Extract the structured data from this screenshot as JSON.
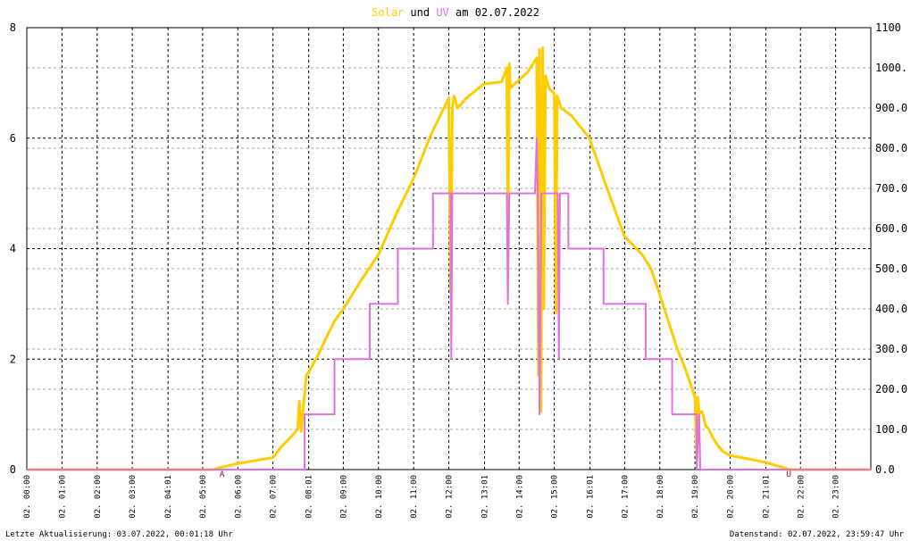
{
  "chart_data": {
    "type": "line",
    "title_parts": {
      "joiner": "und",
      "suffix": "am 02.07.2022"
    },
    "series": [
      {
        "name": "Solar",
        "color": "#ffcc00",
        "axis": "y2",
        "x": [
          0,
          5.3,
          5.5,
          6,
          7,
          7.25,
          7.5,
          7.7,
          7.75,
          7.8,
          7.95,
          8,
          8.25,
          8.5,
          8.75,
          9,
          9.5,
          10,
          10.5,
          11,
          11.5,
          12,
          12.05,
          12.1,
          12.15,
          12.25,
          12.5,
          13,
          13.5,
          13.65,
          13.68,
          13.72,
          13.75,
          14,
          14.25,
          14.5,
          14.55,
          14.58,
          14.62,
          14.67,
          14.7,
          14.75,
          14.85,
          15,
          15.05,
          15.08,
          15.12,
          15.2,
          15.5,
          16,
          16.5,
          17,
          17.5,
          17.75,
          18,
          18.5,
          18.75,
          19,
          19.05,
          19.08,
          19.12,
          19.2,
          19.3,
          19.4,
          19.5,
          19.65,
          19.8,
          20,
          20.5,
          21,
          21.5,
          21.7,
          24
        ],
        "values": [
          0,
          0,
          5,
          15,
          30,
          58,
          80,
          100,
          170,
          95,
          235,
          240,
          280,
          325,
          370,
          400,
          470,
          535,
          635,
          725,
          835,
          925,
          440,
          900,
          930,
          900,
          925,
          960,
          965,
          1000,
          570,
          1010,
          950,
          970,
          990,
          1025,
          235,
          1045,
          145,
          1050,
          400,
          980,
          950,
          935,
          390,
          930,
          920,
          900,
          880,
          825,
          700,
          580,
          535,
          500,
          435,
          300,
          245,
          180,
          25,
          180,
          140,
          145,
          110,
          100,
          80,
          60,
          45,
          35,
          27,
          18,
          5,
          0,
          0
        ]
      },
      {
        "name": "UV",
        "color": "#e070e0",
        "axis": "y",
        "x": [
          0,
          7.9,
          7.9,
          8.75,
          8.75,
          9.75,
          9.75,
          10.55,
          10.55,
          11.55,
          11.55,
          12.05,
          12.07,
          12.1,
          13.65,
          13.68,
          13.72,
          14.45,
          14.5,
          14.53,
          14.58,
          14.63,
          15.1,
          15.13,
          15.16,
          15.4,
          15.4,
          16.4,
          16.4,
          17.6,
          17.6,
          18.35,
          18.35,
          19.05,
          19.05,
          19.12,
          19.15,
          24
        ],
        "values": [
          0,
          0,
          1,
          1,
          2,
          2,
          3,
          3,
          4,
          4,
          5,
          5,
          2,
          5,
          5,
          3,
          5,
          5,
          6,
          5,
          1,
          5,
          5,
          2,
          5,
          5,
          4,
          4,
          3,
          3,
          2,
          2,
          1,
          1,
          0,
          1,
          0,
          0
        ]
      }
    ],
    "xlim": [
      0,
      24
    ],
    "xticks": [
      {
        "value": 0,
        "label": "02. 00:00"
      },
      {
        "value": 1,
        "label": "02. 01:00"
      },
      {
        "value": 2,
        "label": "02. 02:00"
      },
      {
        "value": 3,
        "label": "02. 03:00"
      },
      {
        "value": 4.0167,
        "label": "02. 04:01"
      },
      {
        "value": 5,
        "label": "02. 05:00"
      },
      {
        "value": 6,
        "label": "02. 06:00"
      },
      {
        "value": 7,
        "label": "02. 07:00"
      },
      {
        "value": 8.0167,
        "label": "02. 08:01"
      },
      {
        "value": 9,
        "label": "02. 09:00"
      },
      {
        "value": 10,
        "label": "02. 10:00"
      },
      {
        "value": 11,
        "label": "02. 11:00"
      },
      {
        "value": 12,
        "label": "02. 12:00"
      },
      {
        "value": 13.0167,
        "label": "02. 13:01"
      },
      {
        "value": 14,
        "label": "02. 14:00"
      },
      {
        "value": 15,
        "label": "02. 15:00"
      },
      {
        "value": 16.0167,
        "label": "02. 16:01"
      },
      {
        "value": 17,
        "label": "02. 17:00"
      },
      {
        "value": 18,
        "label": "02. 18:00"
      },
      {
        "value": 19,
        "label": "02. 19:00"
      },
      {
        "value": 20,
        "label": "02. 20:00"
      },
      {
        "value": 21.0167,
        "label": "02. 21:01"
      },
      {
        "value": 22,
        "label": "02. 22:00"
      },
      {
        "value": 23,
        "label": "02. 23:00"
      }
    ],
    "ylim": [
      0,
      8
    ],
    "yticks": [
      0,
      2,
      4,
      6,
      8
    ],
    "y2lim": [
      0,
      1100
    ],
    "y2ticks": [
      {
        "value": 0,
        "label": "0.0"
      },
      {
        "value": 100,
        "label": "100.0"
      },
      {
        "value": 200,
        "label": "200.0"
      },
      {
        "value": 300,
        "label": "300.0"
      },
      {
        "value": 400,
        "label": "400.0"
      },
      {
        "value": 500,
        "label": "500.0"
      },
      {
        "value": 600,
        "label": "600.0"
      },
      {
        "value": 700,
        "label": "700.0"
      },
      {
        "value": 800,
        "label": "800.0"
      },
      {
        "value": 900,
        "label": "900.0"
      },
      {
        "value": 1000,
        "label": "1000."
      },
      1100
    ],
    "grid": true,
    "annotations": [
      {
        "text": "A",
        "x": 5.55
      },
      {
        "text": "U",
        "x": 21.67
      }
    ],
    "footer_left": "Letzte Aktualisierung: 03.07.2022, 00:01:18 Uhr",
    "footer_right": "Datenstand: 02.07.2022, 23:59:47 Uhr"
  }
}
